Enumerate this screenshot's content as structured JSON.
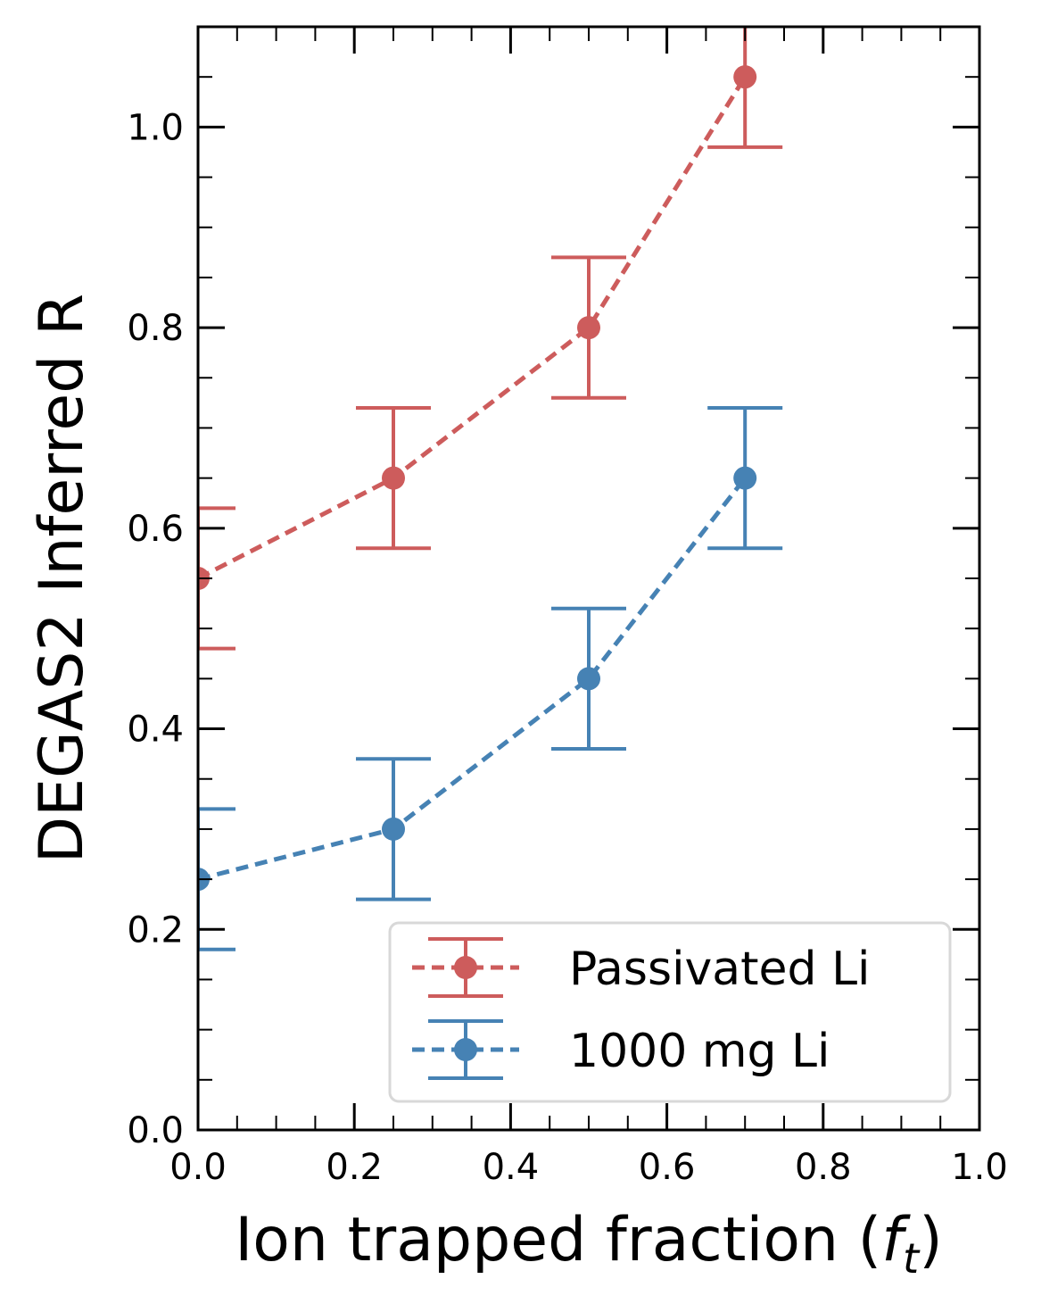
{
  "chart_data": {
    "type": "line",
    "xlabel_main": "Ion trapped fraction (",
    "xlabel_symbol": "f",
    "xlabel_subscript": "t",
    "xlabel_close": ")",
    "ylabel": "DEGAS2 Inferred R",
    "xlim": [
      0.0,
      1.0
    ],
    "ylim": [
      0.0,
      1.1
    ],
    "x_ticks": [
      "0.0",
      "0.2",
      "0.4",
      "0.6",
      "0.8",
      "1.0"
    ],
    "y_ticks": [
      "0.0",
      "0.2",
      "0.4",
      "0.6",
      "0.8",
      "1.0"
    ],
    "legend_position": "lower-right",
    "series": [
      {
        "name": "Passivated Li",
        "color": "#cd5c5c",
        "x": [
          0.0,
          0.25,
          0.5,
          0.7
        ],
        "y": [
          0.55,
          0.65,
          0.8,
          1.05
        ],
        "err": [
          0.07,
          0.07,
          0.07,
          0.07
        ]
      },
      {
        "name": "1000 mg Li",
        "color": "#4682b4",
        "x": [
          0.0,
          0.25,
          0.5,
          0.7
        ],
        "y": [
          0.25,
          0.3,
          0.45,
          0.65
        ],
        "err": [
          0.07,
          0.07,
          0.07,
          0.07
        ]
      }
    ]
  }
}
